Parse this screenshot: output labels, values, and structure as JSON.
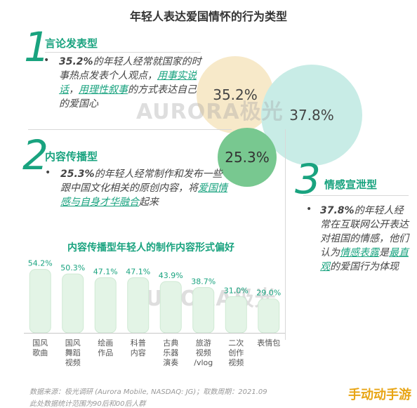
{
  "title": "年轻人表达爱国情怀的行为类型",
  "sections": [
    {
      "number": "1",
      "title": "言论发表型",
      "text": {
        "pct": "35.2%",
        "a": "的年轻人经常就国家的时事热点发表个人观点，",
        "em1": "用事实说话",
        "sep": "，",
        "em2": "用理性叙事",
        "b": "的方式表达自己的爱国心"
      }
    },
    {
      "number": "2",
      "title": "内容传播型",
      "text": {
        "pct": "25.3%",
        "a": "的年轻人经常制作和发布一些跟中国文化相关的原创内容，将",
        "em1": "爱国情感与自身才华融合",
        "b": "起来"
      }
    },
    {
      "number": "3",
      "title": "情感宣泄型",
      "text": {
        "pct": "37.8%",
        "a": "的年轻人经常在互联网公开表达对祖国的情感，他们认为",
        "em1": "情感表露",
        "mid": "是",
        "em2": "最直观",
        "b": "的爱国行为体现"
      }
    }
  ],
  "bubbles": [
    {
      "label": "35.2%",
      "color": "#f7e9c9",
      "text_color": "#444444"
    },
    {
      "label": "37.8%",
      "color": "#c8ece6",
      "text_color": "#444444"
    },
    {
      "label": "25.3%",
      "color": "#78c890",
      "text_color": "#333333"
    }
  ],
  "watermark": "AURORA极光",
  "chart_data": {
    "type": "bar",
    "title": "内容传播型年轻人的制作内容形式偏好",
    "categories": [
      "国风\n歌曲",
      "国风\n舞蹈\n视频",
      "绘画\n作品",
      "科普\n内容",
      "古典\n乐器\n演奏",
      "旅游\n视频\n/vlog",
      "二次\n创作\n视频",
      "表情包"
    ],
    "values": [
      54.2,
      50.3,
      47.1,
      47.1,
      43.9,
      38.7,
      31.0,
      29.0
    ],
    "value_labels": [
      "54.2%",
      "50.3%",
      "47.1%",
      "47.1%",
      "43.9%",
      "38.7%",
      "31.0%",
      "29.0%"
    ],
    "ylim": [
      0,
      60
    ],
    "colors": {
      "bar_fill": "#e3f4e6",
      "bar_stroke": "#cfe9d4",
      "label": "#19a37f"
    }
  },
  "source": {
    "line1": "数据来源：极光调研 (Aurora Mobile, NASDAQ: JG)；取数周期：2021.09",
    "line2": "此处数据统计范围为90后和00后人群"
  },
  "site_logo": "手动动手游",
  "colors": {
    "accent": "#19a37f"
  }
}
